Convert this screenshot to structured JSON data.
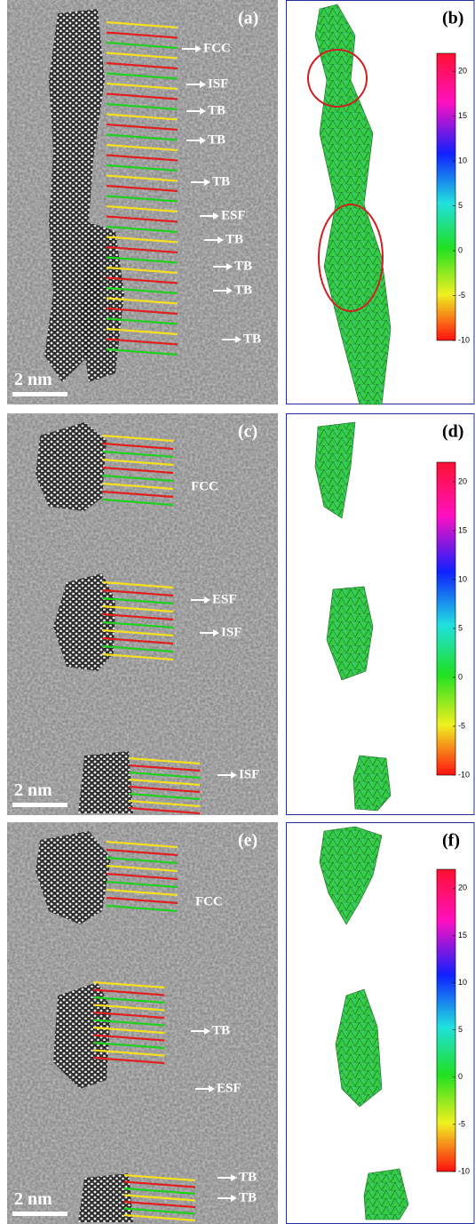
{
  "rows": [
    {
      "left": {
        "label": "(a)",
        "scale_bar": "2 nm",
        "annotations": [
          "FCC",
          "ISF",
          "TB",
          "TB",
          "TB",
          "ESF",
          "TB",
          "TB",
          "TB",
          "TB"
        ]
      },
      "right": {
        "label": "(b)",
        "colorbar": {
          "lim": [
            -10,
            22
          ],
          "ticks": [
            20,
            15,
            10,
            5,
            0,
            -5,
            -10
          ]
        }
      }
    },
    {
      "left": {
        "label": "(c)",
        "scale_bar": "2 nm",
        "annotations": [
          "FCC",
          "ESF",
          "ISF",
          "ISF"
        ]
      },
      "right": {
        "label": "(d)",
        "colorbar": {
          "lim": [
            -10,
            22
          ],
          "ticks": [
            20,
            15,
            10,
            5,
            0,
            -5,
            -10
          ]
        }
      }
    },
    {
      "left": {
        "label": "(e)",
        "scale_bar": "2 nm",
        "annotations": [
          "FCC",
          "TB",
          "ESF",
          "TB",
          "TB"
        ]
      },
      "right": {
        "label": "(f)",
        "colorbar": {
          "lim": [
            -10,
            22
          ],
          "ticks": [
            20,
            15,
            10,
            5,
            0,
            -5,
            -10
          ]
        }
      }
    }
  ]
}
